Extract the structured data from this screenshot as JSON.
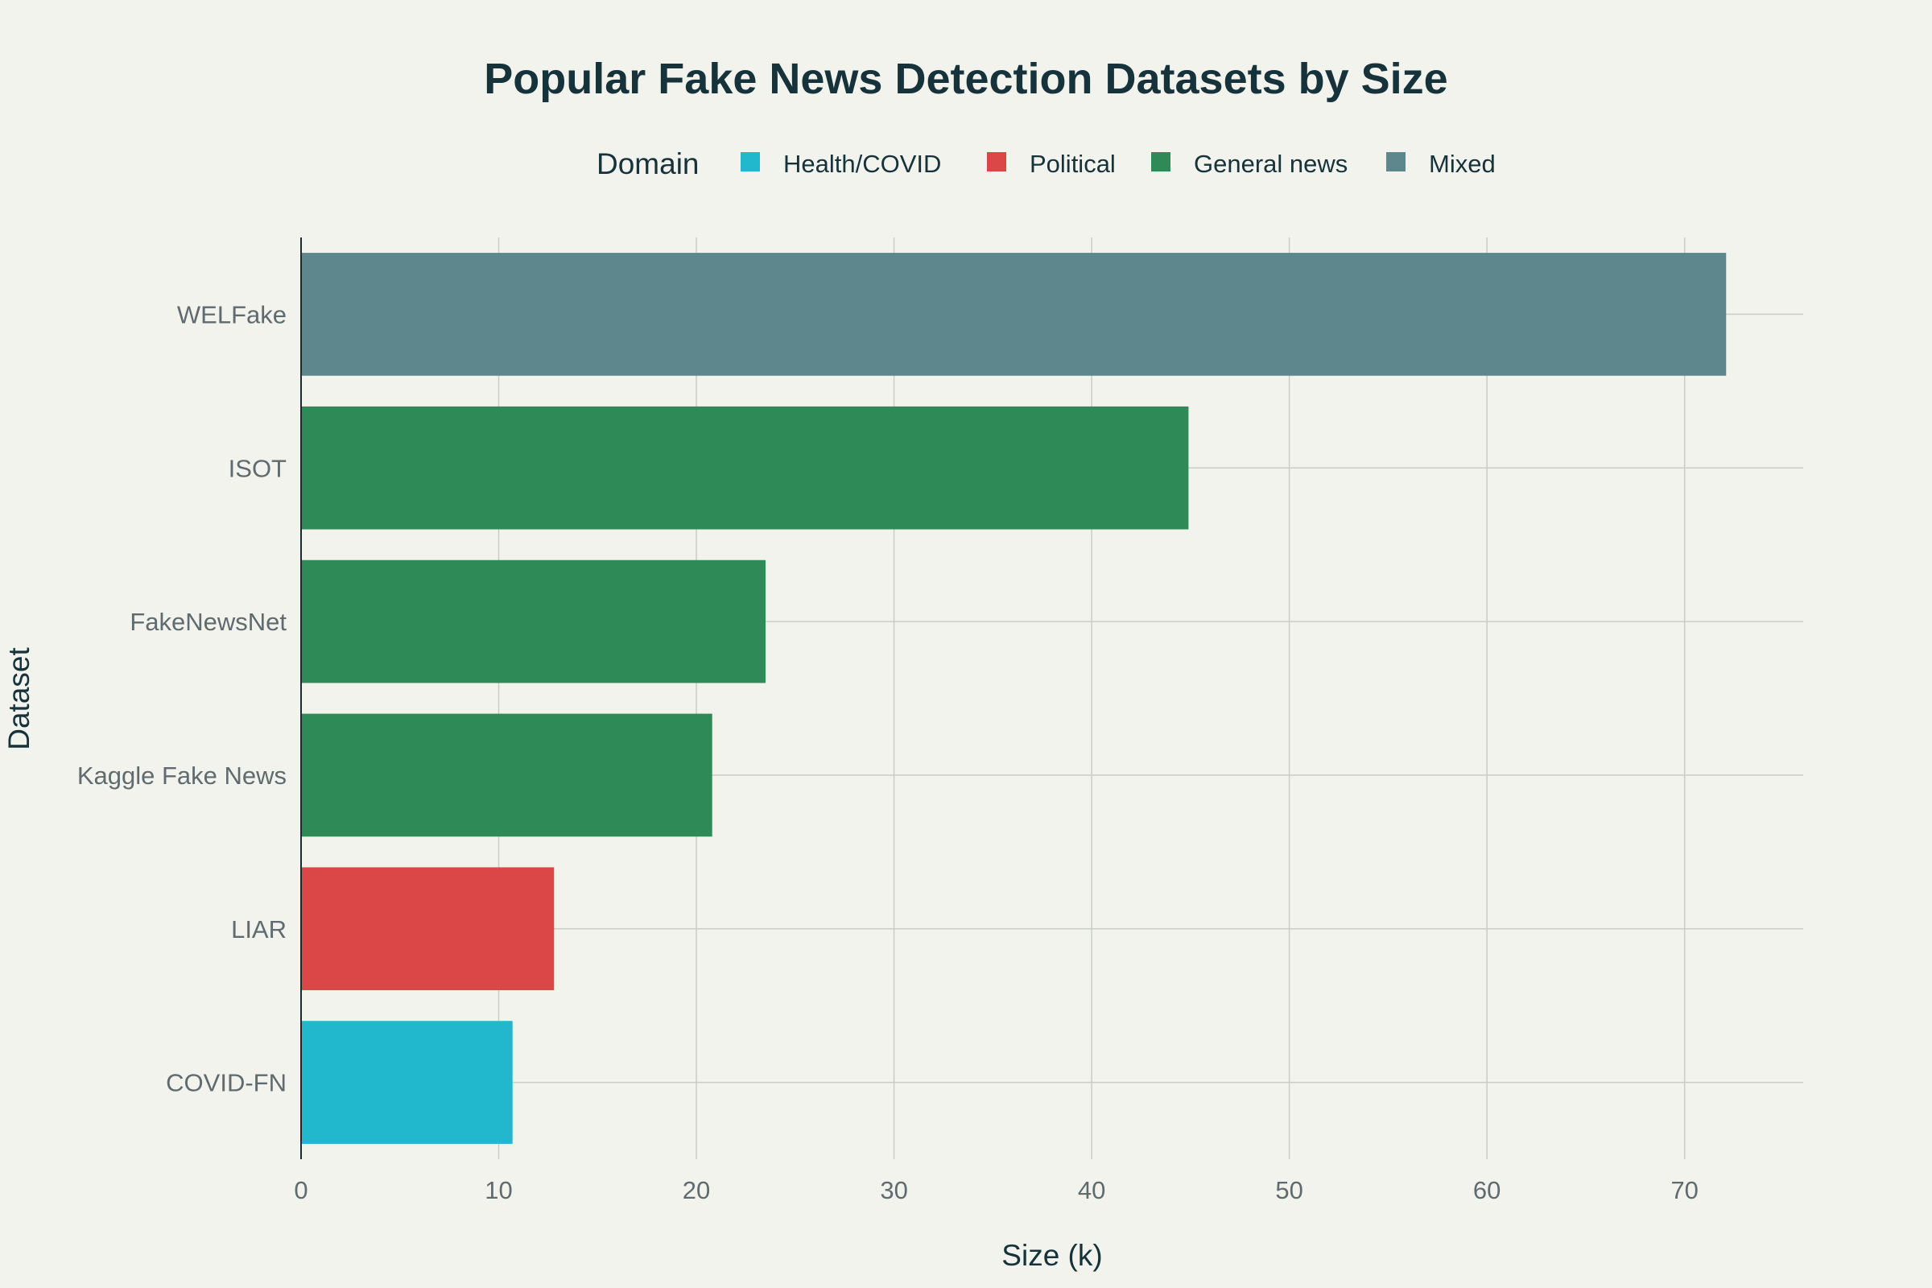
{
  "chart_data": {
    "type": "bar",
    "orientation": "horizontal",
    "title": "Popular Fake News Detection Datasets by Size",
    "xlabel": "Size (k)",
    "ylabel": "Dataset",
    "xlim": [
      0,
      76
    ],
    "xticks": [
      0,
      10,
      20,
      30,
      40,
      50,
      60,
      70
    ],
    "grid": true,
    "legend": {
      "title": "Domain",
      "placement": "top-center",
      "entries": [
        {
          "name": "Health/COVID",
          "color": "#21b8cd"
        },
        {
          "name": "Political",
          "color": "#db4646"
        },
        {
          "name": "General news",
          "color": "#2e8b57"
        },
        {
          "name": "Mixed",
          "color": "#5d878c"
        }
      ]
    },
    "categories": [
      "WELFake",
      "ISOT",
      "FakeNewsNet",
      "Kaggle Fake News",
      "LIAR",
      "COVID-FN"
    ],
    "bars": [
      {
        "category": "WELFake",
        "value": 72.1,
        "domain": "Mixed"
      },
      {
        "category": "ISOT",
        "value": 44.9,
        "domain": "General news"
      },
      {
        "category": "FakeNewsNet",
        "value": 23.5,
        "domain": "General news"
      },
      {
        "category": "Kaggle Fake News",
        "value": 20.8,
        "domain": "General news"
      },
      {
        "category": "LIAR",
        "value": 12.8,
        "domain": "Political"
      },
      {
        "category": "COVID-FN",
        "value": 10.7,
        "domain": "Health/COVID"
      }
    ]
  }
}
